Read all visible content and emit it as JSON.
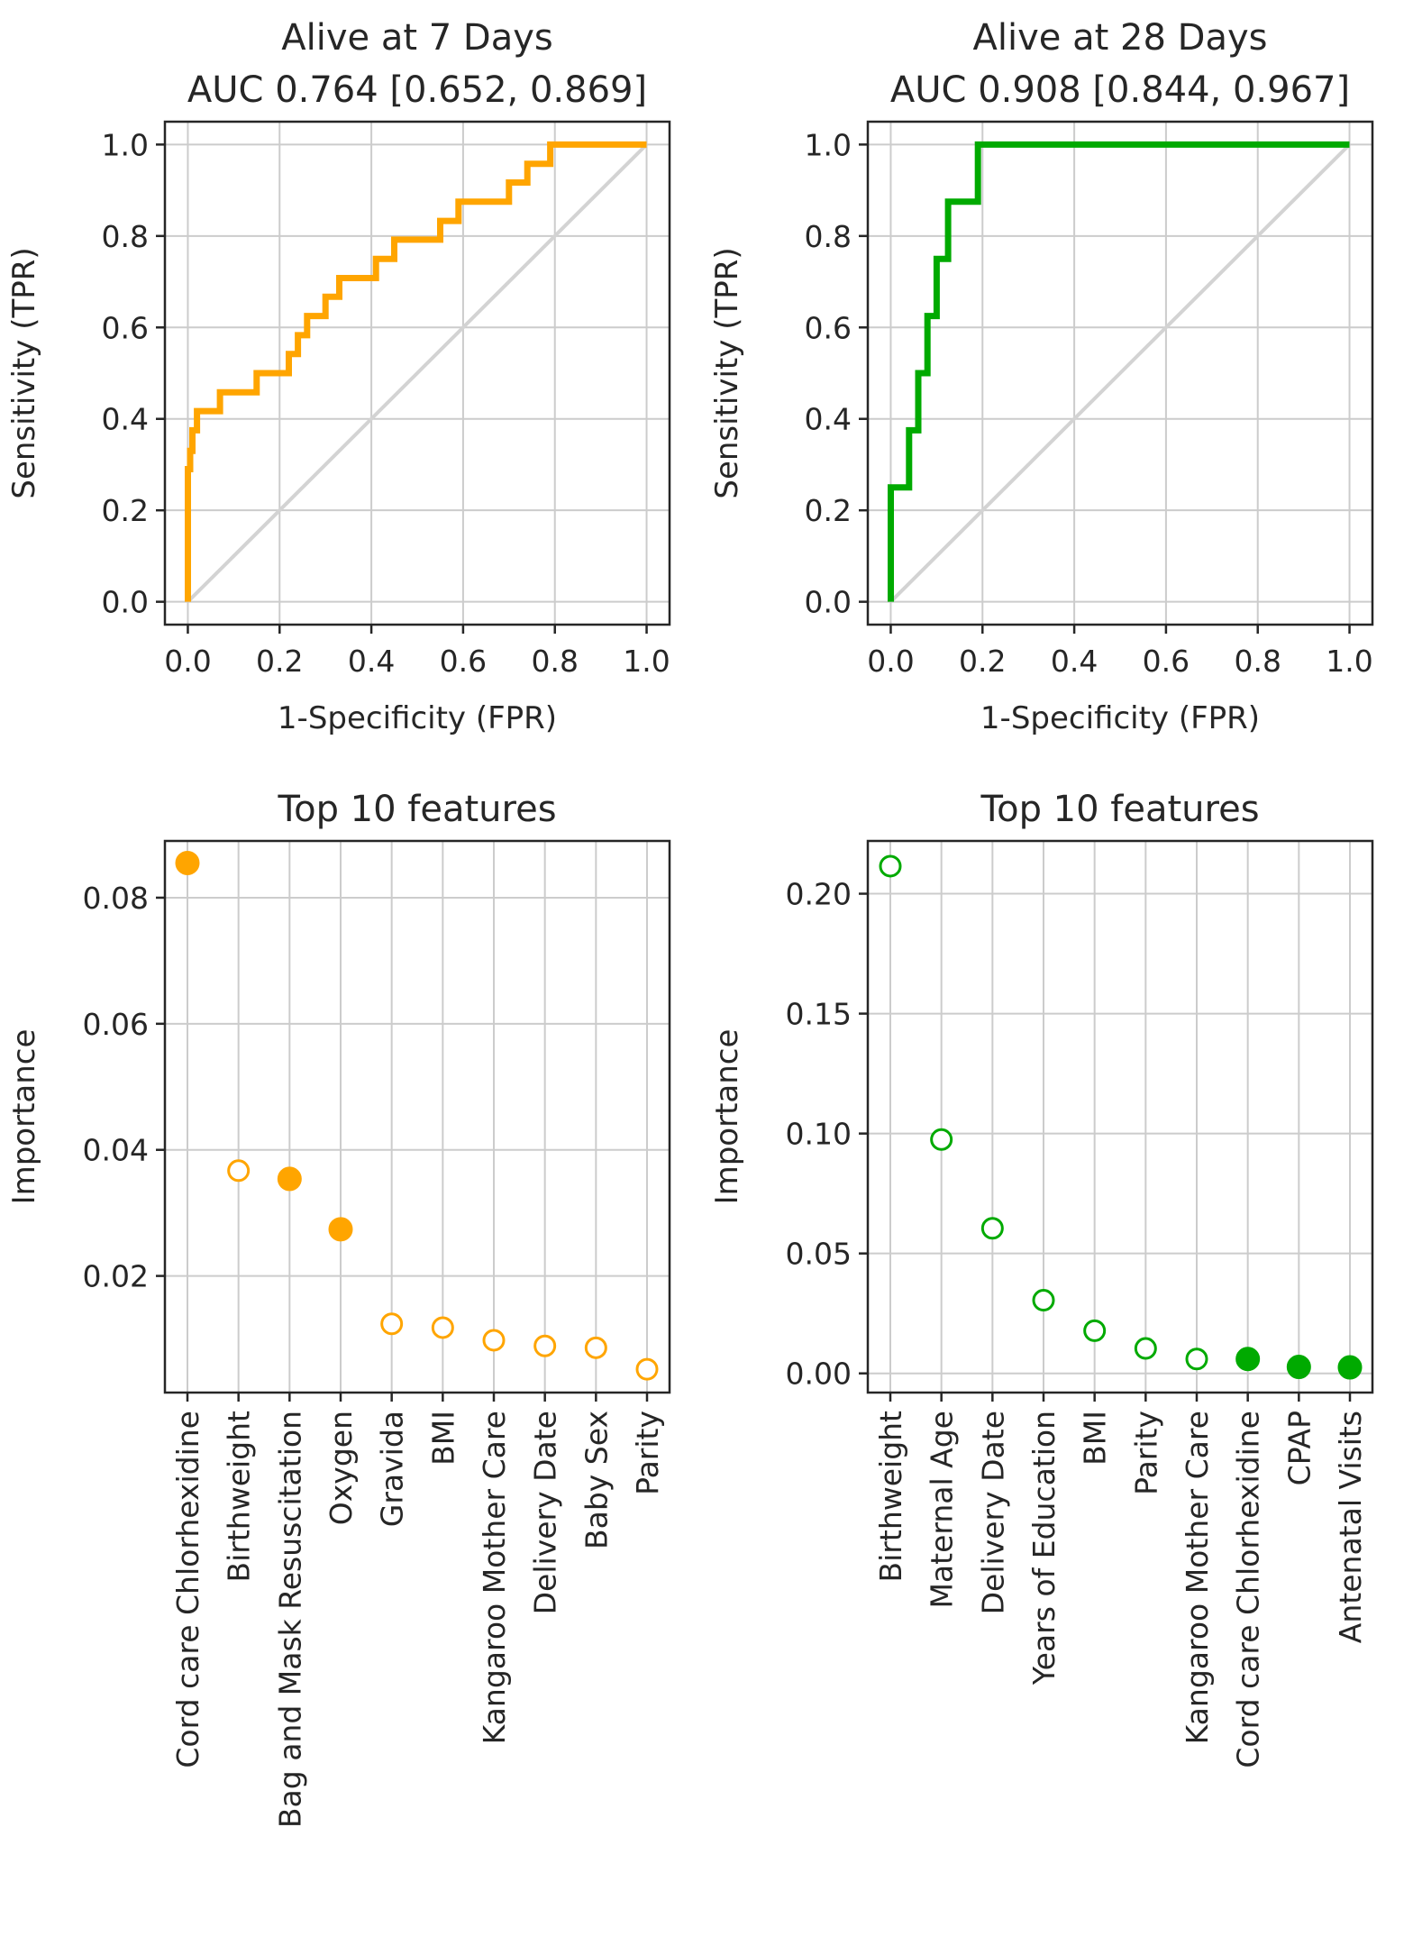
{
  "colors": {
    "orange": "#FFA500",
    "green": "#00AA00",
    "diagonal": "#d3d3d3",
    "text": "#262626"
  },
  "chart_data": [
    {
      "type": "line",
      "title": [
        "Alive at 7 Days",
        "AUC 0.764 [0.652, 0.869]"
      ],
      "xlabel": "1-Specificity (FPR)",
      "ylabel": "Sensitivity (TPR)",
      "xlim": [
        -0.05,
        1.05
      ],
      "ylim": [
        -0.05,
        1.05
      ],
      "xticks": [
        "0.0",
        "0.2",
        "0.4",
        "0.6",
        "0.8",
        "1.0"
      ],
      "yticks": [
        "0.0",
        "0.2",
        "0.4",
        "0.6",
        "0.8",
        "1.0"
      ],
      "grid": true,
      "series": [
        {
          "color": "#FFA500",
          "x": [
            0,
            0,
            0.005,
            0.005,
            0.01,
            0.01,
            0.02,
            0.02,
            0.07,
            0.07,
            0.15,
            0.15,
            0.19,
            0.19,
            0.22,
            0.22,
            0.24,
            0.24,
            0.26,
            0.26,
            0.3,
            0.3,
            0.33,
            0.33,
            0.41,
            0.41,
            0.45,
            0.45,
            0.55,
            0.55,
            0.57,
            0.57,
            0.59,
            0.59,
            0.7,
            0.7,
            0.74,
            0.74,
            0.79,
            0.79,
            1.0
          ],
          "y": [
            0,
            0.29,
            0.29,
            0.33,
            0.33,
            0.375,
            0.375,
            0.417,
            0.417,
            0.458,
            0.458,
            0.5,
            0.5,
            0.5,
            0.5,
            0.542,
            0.542,
            0.583,
            0.583,
            0.625,
            0.625,
            0.667,
            0.667,
            0.708,
            0.708,
            0.75,
            0.75,
            0.792,
            0.792,
            0.833,
            0.833,
            0.833,
            0.833,
            0.875,
            0.875,
            0.917,
            0.917,
            0.958,
            0.958,
            1.0,
            1.0
          ]
        },
        {
          "color": "#d3d3d3",
          "x": [
            0,
            1
          ],
          "y": [
            0,
            1
          ]
        }
      ]
    },
    {
      "type": "line",
      "title": [
        "Alive at 28 Days",
        "AUC 0.908 [0.844, 0.967]"
      ],
      "xlabel": "1-Specificity (FPR)",
      "ylabel": "Sensitivity (TPR)",
      "xlim": [
        -0.05,
        1.05
      ],
      "ylim": [
        -0.05,
        1.05
      ],
      "xticks": [
        "0.0",
        "0.2",
        "0.4",
        "0.6",
        "0.8",
        "1.0"
      ],
      "yticks": [
        "0.0",
        "0.2",
        "0.4",
        "0.6",
        "0.8",
        "1.0"
      ],
      "grid": true,
      "series": [
        {
          "color": "#00AA00",
          "x": [
            0,
            0,
            0.04,
            0.04,
            0.06,
            0.06,
            0.08,
            0.08,
            0.1,
            0.1,
            0.125,
            0.125,
            0.19,
            0.19,
            0.24,
            0.24,
            1.0
          ],
          "y": [
            0,
            0.25,
            0.25,
            0.375,
            0.375,
            0.5,
            0.5,
            0.625,
            0.625,
            0.75,
            0.75,
            0.875,
            0.875,
            1.0,
            1.0,
            1.0,
            1.0
          ]
        },
        {
          "color": "#d3d3d3",
          "x": [
            0,
            1
          ],
          "y": [
            0,
            1
          ]
        }
      ]
    },
    {
      "type": "scatter",
      "title": [
        "Top 10 features"
      ],
      "ylabel": "Importance",
      "categories": [
        "Cord care Chlorhexidine",
        "Birthweight",
        "Bag and Mask Resuscitation",
        "Oxygen",
        "Gravida",
        "BMI",
        "Kangaroo Mother Care",
        "Delivery Date",
        "Baby Sex",
        "Parity"
      ],
      "values": [
        0.0855,
        0.0367,
        0.0354,
        0.0274,
        0.0124,
        0.0118,
        0.0098,
        0.0089,
        0.0086,
        0.0052
      ],
      "filled": [
        true,
        false,
        true,
        true,
        false,
        false,
        false,
        false,
        false,
        false
      ],
      "color": "#FFA500",
      "ylim": [
        0.0015,
        0.089
      ],
      "yticks": [
        0.02,
        0.04,
        0.06,
        0.08
      ],
      "yticklabels": [
        "0.02",
        "0.04",
        "0.06",
        "0.08"
      ],
      "grid": true
    },
    {
      "type": "scatter",
      "title": [
        "Top 10 features"
      ],
      "ylabel": "Importance",
      "categories": [
        "Birthweight",
        "Maternal Age",
        "Delivery Date",
        "Years of Education",
        "BMI",
        "Parity",
        "Kangaroo Mother Care",
        "Cord care Chlorhexidine",
        "CPAP",
        "Antenatal Visits"
      ],
      "values": [
        0.2115,
        0.0975,
        0.0605,
        0.0305,
        0.0178,
        0.0104,
        0.006,
        0.006,
        0.0027,
        0.0025
      ],
      "filled": [
        false,
        false,
        false,
        false,
        false,
        false,
        false,
        true,
        true,
        true
      ],
      "color": "#00AA00",
      "ylim": [
        -0.008,
        0.222
      ],
      "yticks": [
        0.0,
        0.05,
        0.1,
        0.15,
        0.2
      ],
      "yticklabels": [
        "0.00",
        "0.05",
        "0.10",
        "0.15",
        "0.20"
      ],
      "grid": true
    }
  ]
}
